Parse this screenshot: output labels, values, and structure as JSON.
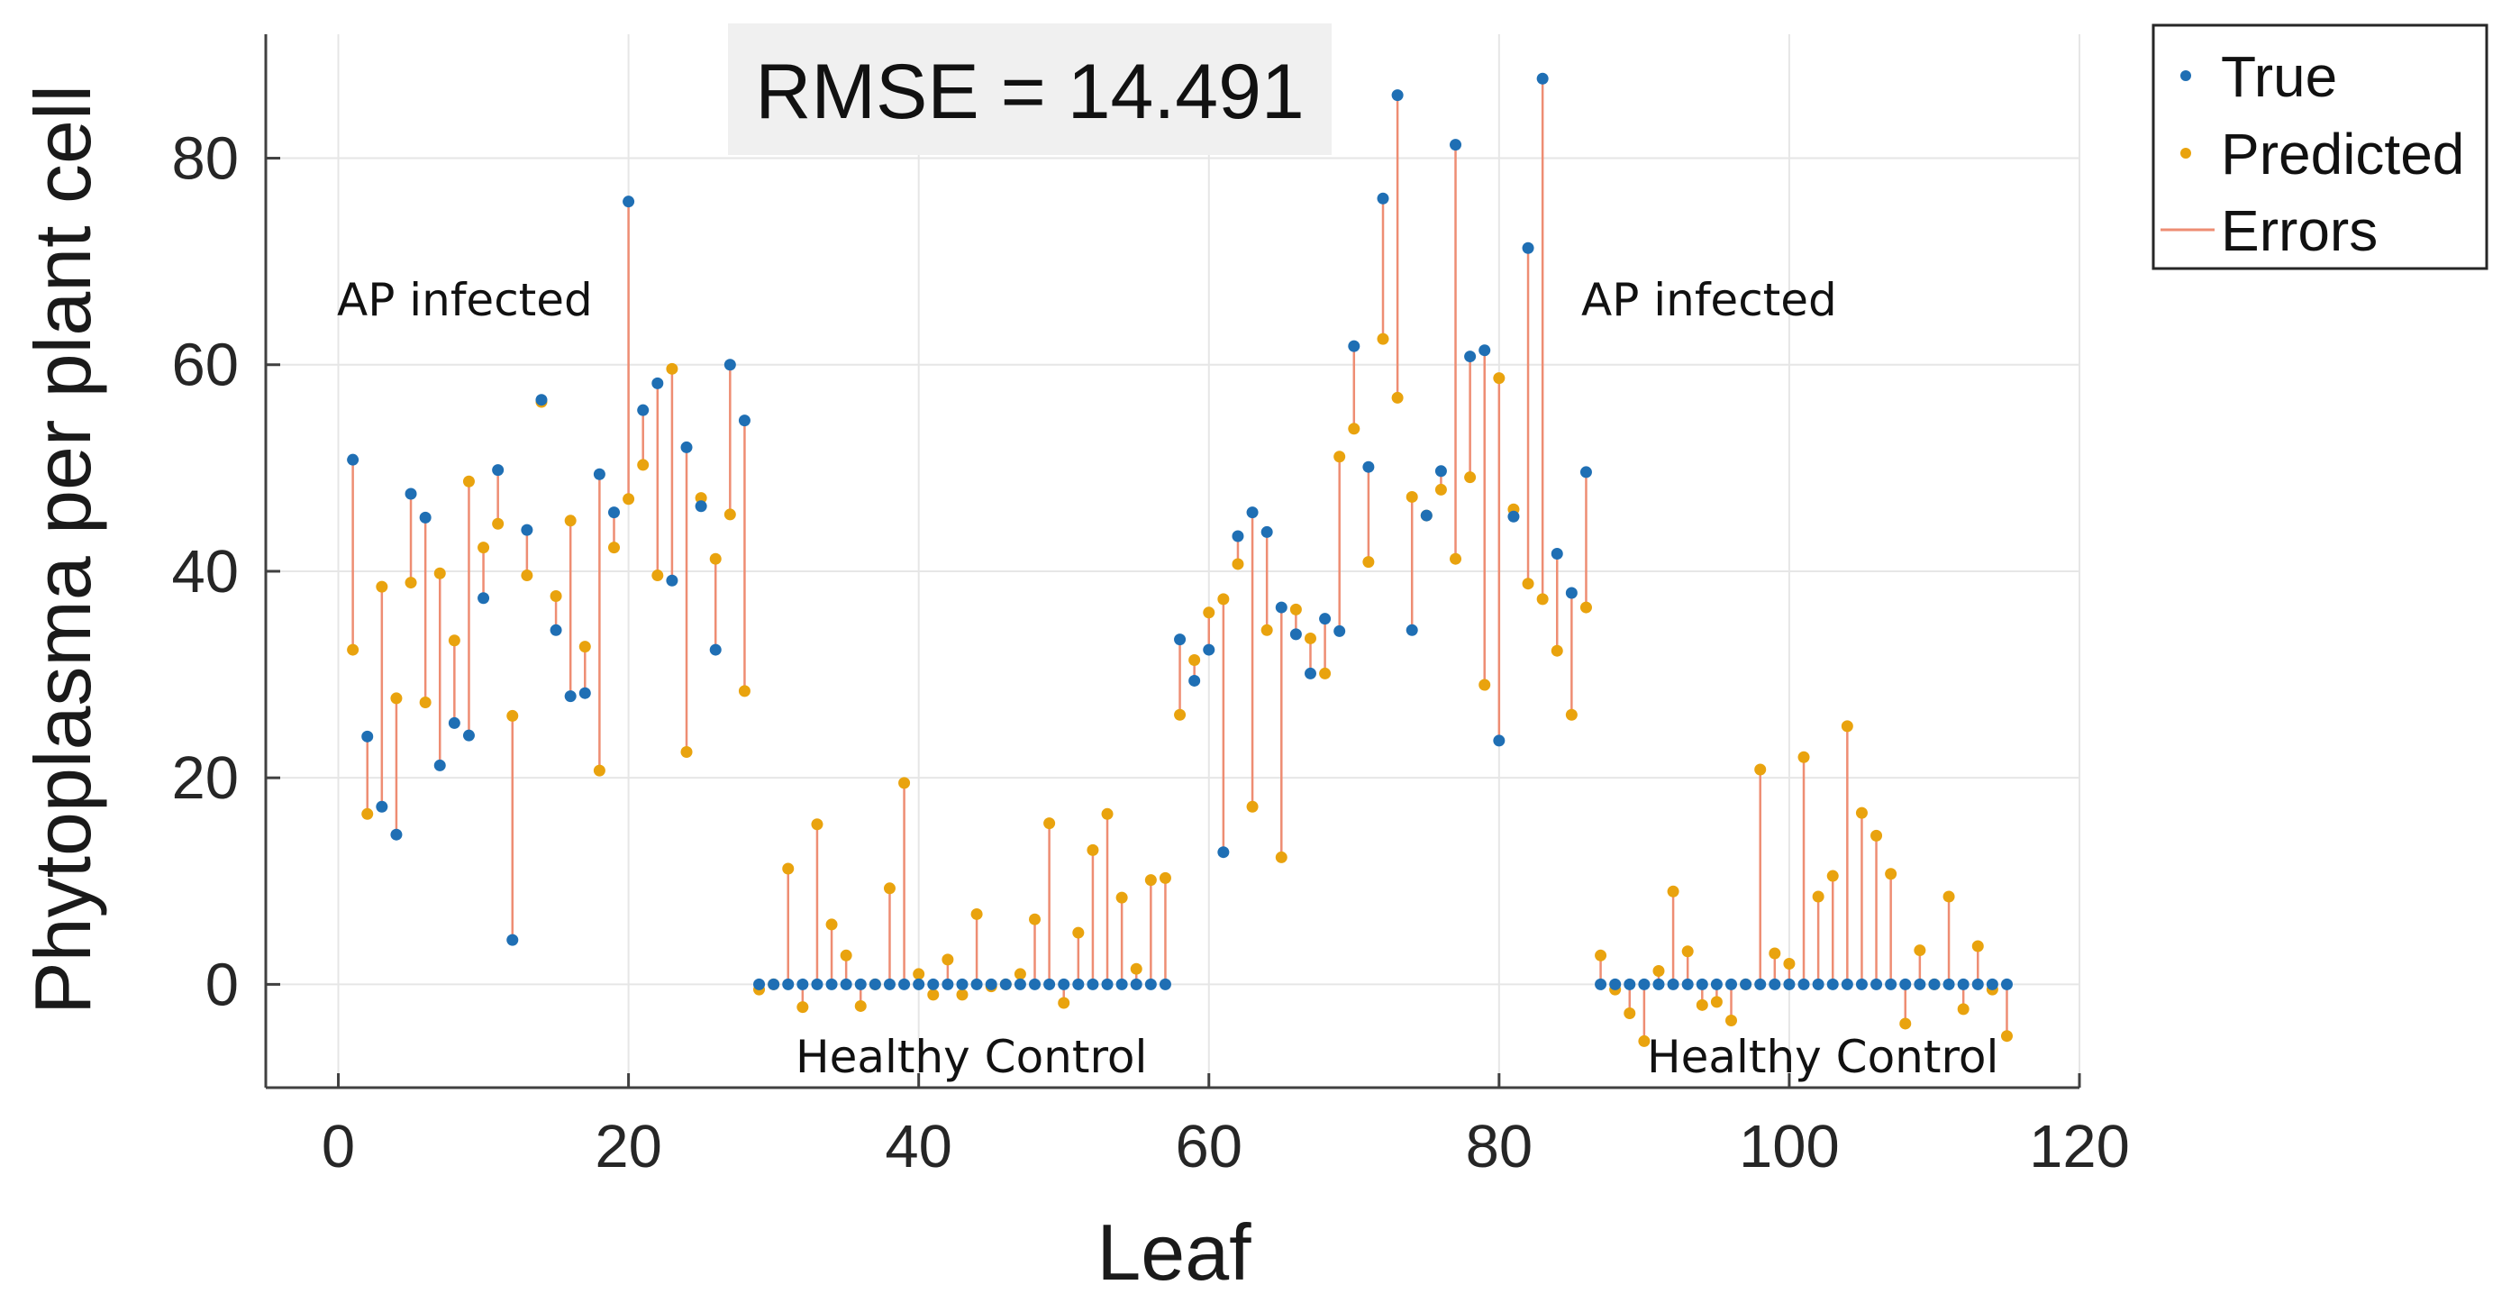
{
  "colors": {
    "true": "#1f6fb4",
    "predicted": "#e9a30e",
    "errors": "#ee8d73",
    "grid": "#e6e6e6",
    "axis": "#404040",
    "rmse_box": "#f0f0f0"
  },
  "chart_data": {
    "type": "scatter",
    "xlabel": "Leaf",
    "ylabel": "Phytoplasma per plant cell",
    "xlim": [
      -5,
      120
    ],
    "ylim": [
      -10,
      92
    ],
    "xticks": [
      0,
      20,
      40,
      60,
      80,
      100,
      120
    ],
    "yticks": [
      0,
      20,
      40,
      60,
      80
    ],
    "grid": true,
    "legend_position": "top-right",
    "legend": {
      "true_label": "True",
      "predicted_label": "Predicted",
      "errors_label": "Errors"
    },
    "rmse_label": "RMSE = 14.491",
    "annotations": {
      "ap_infected_1": "AP infected",
      "ap_infected_2": "AP infected",
      "healthy_control_1": "Healthy Control",
      "healthy_control_2": "Healthy Control"
    },
    "x": [
      1,
      2,
      3,
      4,
      5,
      6,
      7,
      8,
      9,
      10,
      11,
      12,
      13,
      14,
      15,
      16,
      17,
      18,
      19,
      20,
      21,
      22,
      23,
      24,
      25,
      26,
      27,
      28,
      29,
      30,
      31,
      32,
      33,
      34,
      35,
      36,
      37,
      38,
      39,
      40,
      41,
      42,
      43,
      44,
      45,
      46,
      47,
      48,
      49,
      50,
      51,
      52,
      53,
      54,
      55,
      56,
      57,
      58,
      59,
      60,
      61,
      62,
      63,
      64,
      65,
      66,
      67,
      68,
      69,
      70,
      71,
      72,
      73,
      74,
      75,
      76,
      77,
      78,
      79,
      80,
      81,
      82,
      83,
      84,
      85,
      86,
      87,
      88,
      89,
      90,
      91,
      92,
      93,
      94,
      95,
      96,
      97,
      98,
      99,
      100,
      101,
      102,
      103,
      104,
      105,
      106,
      107,
      108,
      109,
      110,
      111,
      112,
      113,
      114,
      115
    ],
    "series": [
      {
        "name": "True",
        "values": [
          50.8,
          24.0,
          17.2,
          14.5,
          47.5,
          45.2,
          21.2,
          25.3,
          24.1,
          37.4,
          49.8,
          4.3,
          44.0,
          56.6,
          34.3,
          27.9,
          28.2,
          49.4,
          45.7,
          75.8,
          55.6,
          58.2,
          39.1,
          52.0,
          46.3,
          32.4,
          60.0,
          54.6,
          0,
          0,
          0,
          0,
          0,
          0,
          0,
          0,
          0,
          0,
          0,
          0,
          0,
          0,
          0,
          0,
          0,
          0,
          0,
          0,
          0,
          0,
          0,
          0,
          0,
          0,
          0,
          0,
          0,
          33.4,
          29.4,
          32.4,
          12.8,
          43.4,
          45.7,
          43.8,
          36.5,
          33.9,
          30.1,
          35.4,
          34.2,
          61.8,
          50.1,
          76.1,
          86.1,
          34.3,
          45.4,
          49.7,
          81.3,
          60.8,
          61.4,
          23.6,
          45.3,
          71.3,
          87.7,
          41.7,
          37.9,
          49.6,
          0,
          0,
          0,
          0,
          0,
          0,
          0,
          0,
          0,
          0,
          0,
          0,
          0,
          0,
          0,
          0,
          0,
          0,
          0,
          0,
          0,
          0,
          0,
          0,
          0,
          0,
          0,
          0,
          0
        ]
      },
      {
        "name": "Predicted",
        "values": [
          32.4,
          16.5,
          38.5,
          27.7,
          38.9,
          27.3,
          39.8,
          33.3,
          48.7,
          42.3,
          44.6,
          26.0,
          39.6,
          56.4,
          37.6,
          44.9,
          32.7,
          20.7,
          42.3,
          47.0,
          50.3,
          39.6,
          59.6,
          22.5,
          47.1,
          41.2,
          45.5,
          28.4,
          -0.5,
          0.0,
          11.2,
          -2.2,
          15.5,
          5.8,
          2.8,
          -2.1,
          0.0,
          9.3,
          19.5,
          1.0,
          -1.0,
          2.4,
          -1.0,
          6.8,
          -0.2,
          0.0,
          1.0,
          6.3,
          15.6,
          -1.8,
          5.0,
          13.0,
          16.5,
          8.4,
          1.5,
          10.1,
          10.3,
          26.1,
          31.4,
          36.0,
          37.3,
          40.7,
          17.2,
          34.3,
          12.3,
          36.3,
          33.5,
          30.1,
          51.1,
          53.8,
          40.9,
          62.5,
          56.8,
          47.2,
          45.4,
          47.9,
          41.2,
          49.1,
          29.0,
          58.7,
          46.0,
          38.8,
          37.3,
          32.3,
          26.1,
          36.5,
          2.8,
          -0.5,
          -2.8,
          -5.5,
          1.3,
          9.0,
          3.2,
          -2.0,
          -1.7,
          -3.5,
          0.0,
          20.8,
          3.0,
          2.0,
          22.0,
          8.5,
          10.5,
          25.0,
          16.6,
          14.4,
          10.7,
          -3.8,
          3.3,
          0.0,
          8.5,
          -2.4,
          3.7,
          -0.5,
          -5.0
        ]
      }
    ]
  }
}
